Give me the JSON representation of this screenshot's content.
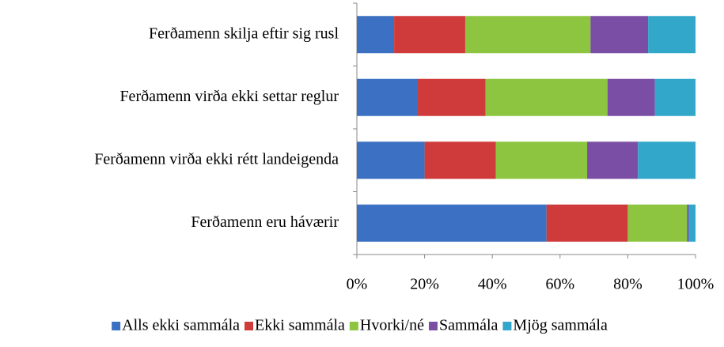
{
  "chart_data": {
    "type": "stacked-barh",
    "categories": [
      "Ferðamenn skilja eftir sig rusl",
      "Ferðamenn virða ekki settar reglur",
      "Ferðamenn virða ekki rétt landeigenda",
      "Ferðamenn eru háværir"
    ],
    "series": [
      {
        "name": "Alls ekki sammála",
        "color": "#3c70c2",
        "values": [
          11,
          18,
          20,
          56
        ]
      },
      {
        "name": "Ekki sammála",
        "color": "#cf3b3b",
        "values": [
          21,
          20,
          21,
          24
        ]
      },
      {
        "name": "Hvorki/né",
        "color": "#8dc540",
        "values": [
          37,
          36,
          27,
          17.5
        ]
      },
      {
        "name": "Sammála",
        "color": "#7a4ea5",
        "values": [
          17,
          14,
          15,
          0.5
        ]
      },
      {
        "name": "Mjög sammála",
        "color": "#32a7c9",
        "values": [
          14,
          12,
          17,
          2
        ]
      }
    ],
    "xlim": [
      0,
      100
    ],
    "xticks": [
      {
        "value": 0,
        "label": "0%"
      },
      {
        "value": 20,
        "label": "20%"
      },
      {
        "value": 40,
        "label": "40%"
      },
      {
        "value": 60,
        "label": "60%"
      },
      {
        "value": 80,
        "label": "80%"
      },
      {
        "value": 100,
        "label": "100%"
      }
    ],
    "legend": "bottom"
  }
}
